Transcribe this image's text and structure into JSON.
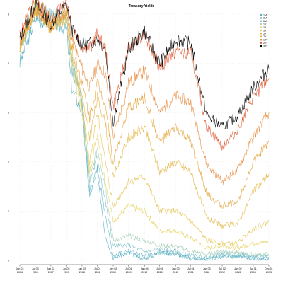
{
  "chart_data": {
    "type": "line",
    "title": "Treasury Yields",
    "xlabel": "",
    "ylabel": "",
    "grid": true,
    "legend_position": "top-right",
    "xlim": [
      "2006-01-03",
      "2013-12-31"
    ],
    "ylim": [
      0,
      5
    ],
    "y_ticks": [
      0,
      1,
      2,
      3,
      4,
      5
    ],
    "x_tick_dates": [
      "2006-01-03",
      "2006-07-03",
      "2007-01-02",
      "2007-07-02",
      "2008-01-02",
      "2008-07-01",
      "2009-01-02",
      "2009-07-01",
      "2010-01-04",
      "2010-07-01",
      "2011-01-03",
      "2011-07-01",
      "2012-01-03",
      "2012-07-02",
      "2013-01-02",
      "2013-07-01",
      "2013-12-31"
    ],
    "x_tick_labels": [
      {
        "top": "Jan 03",
        "bottom": "2006"
      },
      {
        "top": "Jul 03",
        "bottom": "2006"
      },
      {
        "top": "Jan 02",
        "bottom": "2007"
      },
      {
        "top": "Jul 02",
        "bottom": "2007"
      },
      {
        "top": "Jan 02",
        "bottom": "2008"
      },
      {
        "top": "Jul 01",
        "bottom": "2008"
      },
      {
        "top": "Jan 02",
        "bottom": "2009"
      },
      {
        "top": "Jul 01",
        "bottom": "2009"
      },
      {
        "top": "Jan 04",
        "bottom": "2010"
      },
      {
        "top": "Jul 01",
        "bottom": "2010"
      },
      {
        "top": "Jan 03",
        "bottom": "2011"
      },
      {
        "top": "Jul 01",
        "bottom": "2011"
      },
      {
        "top": "Jan 03",
        "bottom": "2012"
      },
      {
        "top": "Jul 02",
        "bottom": "2012"
      },
      {
        "top": "Jan 02",
        "bottom": "2013"
      },
      {
        "top": "Jul 01",
        "bottom": "2013"
      },
      {
        "top": "Dec 31",
        "bottom": "2013"
      }
    ],
    "series": [
      {
        "name": "1M",
        "color": "#5bb0c2",
        "dates": [
          "2006-01-03",
          "2006-07-03",
          "2007-01-02",
          "2007-07-02",
          "2007-09-03",
          "2008-01-02",
          "2008-04-01",
          "2008-07-01",
          "2008-10-01",
          "2009-01-02",
          "2009-07-01",
          "2010-01-04",
          "2010-07-01",
          "2011-01-03",
          "2011-07-01",
          "2012-01-03",
          "2012-07-02",
          "2013-01-02",
          "2013-07-01",
          "2013-12-31"
        ],
        "values": [
          4.0,
          4.9,
          4.8,
          4.7,
          3.5,
          3.0,
          1.3,
          1.8,
          0.5,
          0.05,
          0.15,
          0.03,
          0.15,
          0.13,
          0.03,
          0.01,
          0.08,
          0.07,
          0.04,
          0.01
        ]
      },
      {
        "name": "3M",
        "color": "#6cb9c8",
        "dates": [
          "2006-01-03",
          "2006-07-03",
          "2007-01-02",
          "2007-07-02",
          "2007-09-03",
          "2008-01-02",
          "2008-04-01",
          "2008-07-01",
          "2008-10-01",
          "2009-01-02",
          "2009-07-01",
          "2010-01-04",
          "2010-07-01",
          "2011-01-03",
          "2011-07-01",
          "2012-01-03",
          "2012-07-02",
          "2013-01-02",
          "2013-07-01",
          "2013-12-31"
        ],
        "values": [
          4.1,
          5.0,
          4.9,
          4.9,
          3.9,
          3.2,
          1.4,
          1.9,
          0.9,
          0.1,
          0.2,
          0.08,
          0.16,
          0.15,
          0.04,
          0.02,
          0.1,
          0.08,
          0.05,
          0.07
        ]
      },
      {
        "name": "6M",
        "color": "#7fc2cc",
        "dates": [
          "2006-01-03",
          "2006-07-03",
          "2007-01-02",
          "2007-07-02",
          "2007-09-03",
          "2008-01-02",
          "2008-04-01",
          "2008-07-01",
          "2008-10-01",
          "2009-01-02",
          "2009-07-01",
          "2010-01-04",
          "2010-07-01",
          "2011-01-03",
          "2011-07-01",
          "2012-01-03",
          "2012-07-02",
          "2013-01-02",
          "2013-07-01",
          "2013-12-31"
        ],
        "values": [
          4.3,
          5.1,
          5.0,
          5.0,
          4.1,
          3.3,
          1.6,
          2.1,
          1.2,
          0.3,
          0.3,
          0.18,
          0.22,
          0.19,
          0.1,
          0.06,
          0.15,
          0.12,
          0.09,
          0.1
        ]
      },
      {
        "name": "1Y",
        "color": "#a9cfb8",
        "dates": [
          "2006-01-03",
          "2006-07-03",
          "2007-01-02",
          "2007-07-02",
          "2007-09-03",
          "2008-01-02",
          "2008-04-01",
          "2008-07-01",
          "2008-10-01",
          "2009-01-02",
          "2009-07-01",
          "2010-01-04",
          "2010-07-01",
          "2011-01-03",
          "2011-07-01",
          "2012-01-03",
          "2012-07-02",
          "2013-01-02",
          "2013-07-01",
          "2013-12-31"
        ],
        "values": [
          4.4,
          5.2,
          5.0,
          4.9,
          4.1,
          3.2,
          1.6,
          2.3,
          1.5,
          0.4,
          0.5,
          0.4,
          0.3,
          0.29,
          0.19,
          0.12,
          0.2,
          0.15,
          0.12,
          0.13
        ]
      },
      {
        "name": "2Y",
        "color": "#e8d468",
        "dates": [
          "2006-01-03",
          "2006-07-03",
          "2007-01-02",
          "2007-07-02",
          "2007-09-03",
          "2008-01-02",
          "2008-04-01",
          "2008-07-01",
          "2008-10-01",
          "2009-01-02",
          "2009-07-01",
          "2010-01-04",
          "2010-07-01",
          "2011-01-03",
          "2011-07-01",
          "2012-01-03",
          "2012-07-02",
          "2013-01-02",
          "2013-07-01",
          "2013-12-31"
        ],
        "values": [
          4.3,
          5.2,
          4.8,
          4.9,
          4.0,
          3.0,
          1.8,
          2.6,
          1.6,
          0.8,
          1.1,
          1.0,
          0.6,
          0.6,
          0.45,
          0.25,
          0.3,
          0.25,
          0.35,
          0.38
        ]
      },
      {
        "name": "3Y",
        "color": "#e6c85a",
        "dates": [
          "2006-01-03",
          "2006-07-03",
          "2007-01-02",
          "2007-07-02",
          "2007-09-03",
          "2008-01-02",
          "2008-04-01",
          "2008-07-01",
          "2008-10-01",
          "2009-01-02",
          "2009-07-01",
          "2010-01-04",
          "2010-07-01",
          "2011-01-03",
          "2011-07-01",
          "2012-01-03",
          "2012-07-02",
          "2013-01-02",
          "2013-07-01",
          "2013-12-31"
        ],
        "values": [
          4.3,
          5.1,
          4.8,
          4.9,
          4.1,
          3.1,
          2.0,
          3.0,
          2.0,
          1.1,
          1.6,
          1.7,
          1.0,
          1.0,
          0.8,
          0.4,
          0.35,
          0.35,
          0.65,
          0.78
        ]
      },
      {
        "name": "5Y",
        "color": "#e6b84a",
        "dates": [
          "2006-01-03",
          "2006-07-03",
          "2007-01-02",
          "2007-07-02",
          "2007-09-03",
          "2008-01-02",
          "2008-04-01",
          "2008-07-01",
          "2008-10-01",
          "2009-01-02",
          "2009-07-01",
          "2010-01-04",
          "2010-07-01",
          "2011-01-03",
          "2011-07-01",
          "2012-01-03",
          "2012-07-02",
          "2013-01-02",
          "2013-07-01",
          "2013-12-31"
        ],
        "values": [
          4.3,
          5.1,
          4.7,
          5.0,
          4.3,
          3.3,
          2.5,
          3.3,
          2.8,
          1.7,
          2.5,
          2.7,
          1.8,
          2.0,
          1.8,
          0.85,
          0.7,
          0.75,
          1.4,
          1.75
        ]
      },
      {
        "name": "7Y",
        "color": "#e5a640",
        "dates": [
          "2006-01-03",
          "2006-07-03",
          "2007-01-02",
          "2007-07-02",
          "2007-09-03",
          "2008-01-02",
          "2008-04-01",
          "2008-07-01",
          "2008-10-01",
          "2009-01-02",
          "2009-07-01",
          "2010-01-04",
          "2010-07-01",
          "2011-01-03",
          "2011-07-01",
          "2012-01-03",
          "2012-07-02",
          "2013-01-02",
          "2013-07-01",
          "2013-12-31"
        ],
        "values": [
          4.35,
          5.1,
          4.7,
          5.05,
          4.4,
          3.6,
          2.9,
          3.6,
          3.2,
          2.0,
          3.1,
          3.3,
          2.4,
          2.7,
          2.4,
          1.35,
          1.1,
          1.2,
          2.0,
          2.4
        ]
      },
      {
        "name": "10Y",
        "color": "#e88e45",
        "dates": [
          "2006-01-03",
          "2006-07-03",
          "2007-01-02",
          "2007-07-02",
          "2007-09-03",
          "2008-01-02",
          "2008-04-01",
          "2008-07-01",
          "2008-10-01",
          "2009-01-02",
          "2009-07-01",
          "2010-01-04",
          "2010-07-01",
          "2011-01-03",
          "2011-07-01",
          "2012-01-03",
          "2012-07-02",
          "2013-01-02",
          "2013-07-01",
          "2013-12-31"
        ],
        "values": [
          4.4,
          5.15,
          4.7,
          5.1,
          4.5,
          3.9,
          3.5,
          4.0,
          3.8,
          2.5,
          3.6,
          3.85,
          3.0,
          3.35,
          3.2,
          1.95,
          1.6,
          1.85,
          2.5,
          3.0
        ]
      },
      {
        "name": "20Y",
        "color": "#e0603a",
        "dates": [
          "2006-01-03",
          "2006-07-03",
          "2007-01-02",
          "2007-07-02",
          "2007-09-03",
          "2008-01-02",
          "2008-04-01",
          "2008-07-01",
          "2008-10-01",
          "2009-01-02",
          "2009-07-01",
          "2010-01-04",
          "2010-07-01",
          "2011-01-03",
          "2011-07-01",
          "2012-01-03",
          "2012-07-02",
          "2013-01-02",
          "2013-07-01",
          "2013-12-31"
        ],
        "values": [
          4.6,
          5.3,
          4.9,
          5.3,
          4.8,
          4.3,
          4.3,
          4.6,
          4.3,
          3.1,
          4.3,
          4.6,
          3.9,
          4.25,
          4.2,
          2.7,
          2.3,
          2.65,
          3.3,
          3.7
        ]
      },
      {
        "name": "30Y",
        "color": "#000000",
        "dates": [
          "2006-01-03",
          "2006-07-03",
          "2007-01-02",
          "2007-07-02",
          "2007-09-03",
          "2008-01-02",
          "2008-04-01",
          "2008-07-01",
          "2008-10-01",
          "2009-01-02",
          "2009-07-01",
          "2010-01-04",
          "2010-07-01",
          "2011-01-03",
          "2011-07-01",
          "2012-01-03",
          "2012-07-02",
          "2013-01-02",
          "2013-07-01",
          "2013-12-31"
        ],
        "values": [
          4.5,
          5.2,
          4.8,
          5.2,
          4.7,
          4.4,
          4.4,
          4.5,
          4.3,
          2.8,
          4.3,
          4.65,
          4.0,
          4.5,
          4.4,
          2.95,
          2.7,
          2.95,
          3.5,
          3.9
        ]
      }
    ]
  }
}
